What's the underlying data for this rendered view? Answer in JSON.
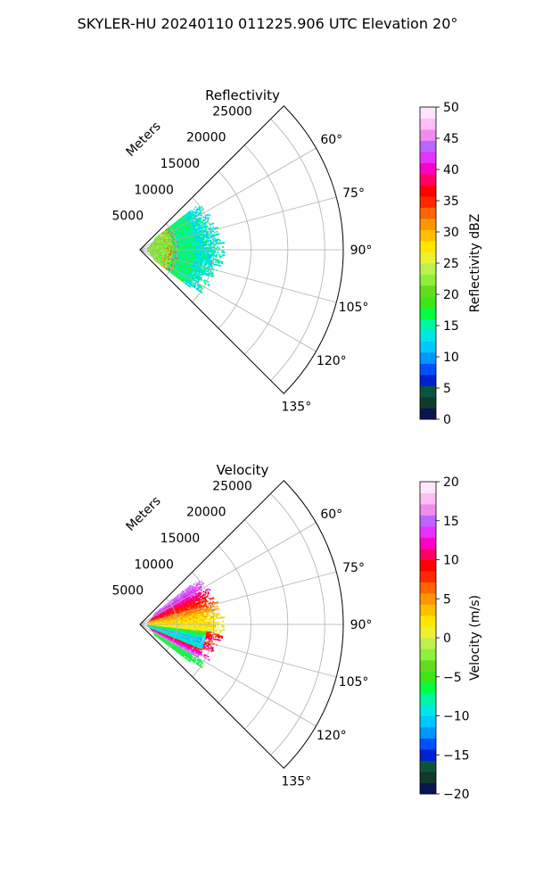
{
  "figure": {
    "suptitle": "SKYLER-HU  20240110  011225.906 UTC Elevation 20°"
  },
  "chart_data": [
    {
      "type": "heatmap",
      "projection": "polar-sector",
      "title": "Reflectivity",
      "range_label": "Meters",
      "range_ticks": [
        5000,
        10000,
        15000,
        20000,
        25000
      ],
      "range_tick_labels": [
        "5000",
        "10000",
        "15000",
        "20000",
        "25000"
      ],
      "range_max": 27500,
      "azimuth_range_deg": [
        45,
        135
      ],
      "azimuth_ticks": [
        60,
        75,
        90,
        105,
        120,
        135
      ],
      "azimuth_tick_labels": [
        "60°",
        "75°",
        "90°",
        "105°",
        "120°",
        "135°"
      ],
      "grid": true,
      "colorbar": {
        "label": "Reflectivity dBZ",
        "range": [
          0,
          50
        ],
        "ticks": [
          0,
          5,
          10,
          15,
          20,
          25,
          30,
          35,
          40,
          45,
          50
        ],
        "tick_labels": [
          "0",
          "5",
          "10",
          "15",
          "20",
          "25",
          "30",
          "35",
          "40",
          "45",
          "50"
        ],
        "colors": [
          "#0a1550",
          "#123a2a",
          "#0a5540",
          "#0020d0",
          "#0050ff",
          "#0096ff",
          "#00c8ff",
          "#00e6e6",
          "#00f5a0",
          "#00ff40",
          "#3ce614",
          "#64dc1e",
          "#8cf03c",
          "#bef050",
          "#f0f032",
          "#ffe600",
          "#ffbe00",
          "#ff9600",
          "#ff6400",
          "#ff2800",
          "#ff0000",
          "#ff0064",
          "#ff00c8",
          "#e632ff",
          "#be64ff",
          "#f08cf0",
          "#ffbef5",
          "#ffe6ff"
        ]
      },
      "field": {
        "extent_range_m": [
          1000,
          11500
        ],
        "extent_azimuth_deg": [
          52,
          127
        ],
        "dominant_values_dbz": [
          12,
          20
        ],
        "near_range_values_dbz": [
          20,
          26
        ],
        "max_value_dbz": 37
      }
    },
    {
      "type": "heatmap",
      "projection": "polar-sector",
      "title": "Velocity",
      "range_label": "Meters",
      "range_ticks": [
        5000,
        10000,
        15000,
        20000,
        25000
      ],
      "range_tick_labels": [
        "5000",
        "10000",
        "15000",
        "20000",
        "25000"
      ],
      "range_max": 27500,
      "azimuth_range_deg": [
        45,
        135
      ],
      "azimuth_ticks": [
        60,
        75,
        90,
        105,
        120,
        135
      ],
      "azimuth_tick_labels": [
        "60°",
        "75°",
        "90°",
        "105°",
        "120°",
        "135°"
      ],
      "grid": true,
      "colorbar": {
        "label": "Velocity (m/s)",
        "range": [
          -20,
          20
        ],
        "ticks": [
          -20,
          -15,
          -10,
          -5,
          0,
          5,
          10,
          15,
          20
        ],
        "tick_labels": [
          "−20",
          "−15",
          "−10",
          "−5",
          "0",
          "5",
          "10",
          "15",
          "20"
        ],
        "colors": [
          "#0a1550",
          "#123a2a",
          "#0a5540",
          "#0020d0",
          "#0050ff",
          "#0096ff",
          "#00c8ff",
          "#00e6e6",
          "#00f5a0",
          "#00ff40",
          "#3ce614",
          "#64dc1e",
          "#8cf03c",
          "#bef050",
          "#f0f032",
          "#ffe600",
          "#ffbe00",
          "#ff9600",
          "#ff6400",
          "#ff2800",
          "#ff0000",
          "#ff0064",
          "#ff00c8",
          "#e632ff",
          "#be64ff",
          "#f08cf0",
          "#ffbef5",
          "#ffe6ff"
        ]
      },
      "field": {
        "extent_range_m": [
          1000,
          11500
        ],
        "extent_azimuth_deg": [
          52,
          127
        ],
        "outbound_max_ms": 18,
        "inbound_min_ms": -12
      }
    }
  ]
}
